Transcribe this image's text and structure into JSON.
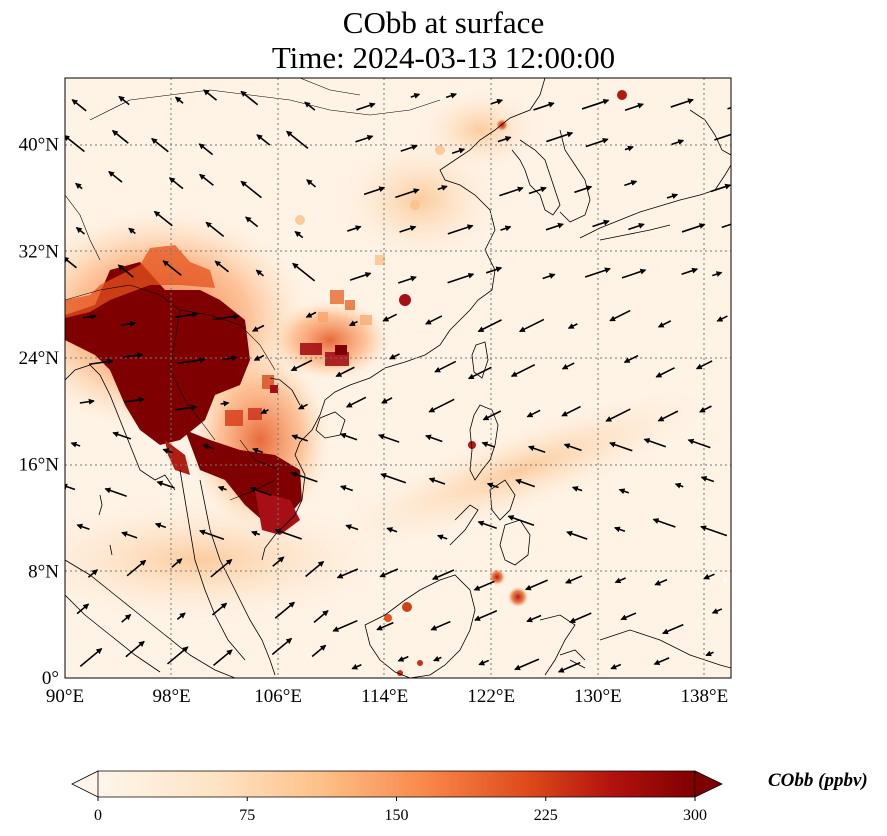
{
  "title": "CObb at surface",
  "subtitle": "Time: 2024-03-13 12:00:00",
  "map": {
    "extent": {
      "lon": [
        90,
        140
      ],
      "lat": [
        0,
        45
      ]
    },
    "lat_ticks": [
      {
        "value": 0,
        "label": "0°"
      },
      {
        "value": 8,
        "label": "8°N"
      },
      {
        "value": 16,
        "label": "16°N"
      },
      {
        "value": 24,
        "label": "24°N"
      },
      {
        "value": 32,
        "label": "32°N"
      },
      {
        "value": 40,
        "label": "40°N"
      }
    ],
    "lon_ticks": [
      {
        "value": 90,
        "label": "90°E"
      },
      {
        "value": 98,
        "label": "98°E"
      },
      {
        "value": 106,
        "label": "106°E"
      },
      {
        "value": 114,
        "label": "114°E"
      },
      {
        "value": 122,
        "label": "122°E"
      },
      {
        "value": 130,
        "label": "130°E"
      },
      {
        "value": 138,
        "label": "138°E"
      }
    ],
    "gridlines": true,
    "wind_vectors": true,
    "colormap": [
      "#fff5eb",
      "#fdd8a9",
      "#fda263",
      "#e4511b",
      "#a50f15",
      "#7f0000"
    ]
  },
  "colorbar": {
    "label": "CObb (ppbv)",
    "ticks": [
      "0",
      "75",
      "150",
      "225",
      "300"
    ],
    "range": [
      0,
      300
    ],
    "extend": "both"
  }
}
